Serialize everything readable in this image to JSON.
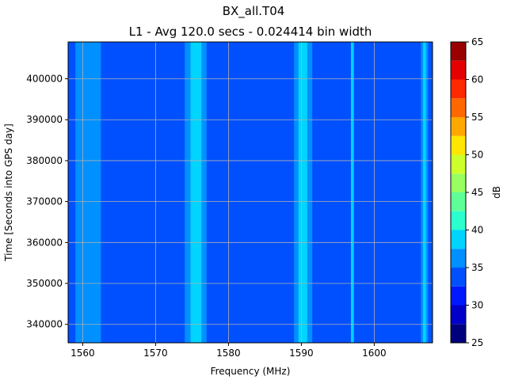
{
  "chart_data": {
    "type": "heatmap",
    "title": "BX_all.T04",
    "subtitle": "L1 - Avg 120.0 secs - 0.024414 bin width",
    "xlabel": "Frequency (MHz)",
    "ylabel": "Time [Seconds into GPS day]",
    "xlim": [
      1558,
      1608
    ],
    "ylim": [
      335500,
      409000
    ],
    "xticks": [
      1560,
      1570,
      1580,
      1590,
      1600
    ],
    "yticks": [
      340000,
      350000,
      360000,
      370000,
      380000,
      390000,
      400000
    ],
    "grid": true,
    "background_level_db": 34,
    "bands": [
      {
        "x0": 1559.0,
        "x1": 1562.5,
        "db": 36
      },
      {
        "x0": 1574.0,
        "x1": 1577.0,
        "db": 37
      },
      {
        "x0": 1574.8,
        "x1": 1576.3,
        "db": 39
      },
      {
        "x0": 1589.0,
        "x1": 1591.5,
        "db": 36
      },
      {
        "x0": 1589.6,
        "x1": 1590.8,
        "db": 38
      },
      {
        "x0": 1596.8,
        "x1": 1597.2,
        "db": 38
      },
      {
        "x0": 1606.4,
        "x1": 1607.4,
        "db": 36
      },
      {
        "x0": 1606.7,
        "x1": 1607.1,
        "db": 39
      }
    ],
    "colorbar": {
      "label": "dB",
      "min": 25,
      "max": 65,
      "step": 2.5,
      "ticks": [
        25,
        30,
        35,
        40,
        45,
        50,
        55,
        60,
        65
      ],
      "colors": [
        "#00007f",
        "#0000c8",
        "#0018ff",
        "#0050ff",
        "#0090ff",
        "#00d4ff",
        "#2affcd",
        "#5fff97",
        "#97ff5f",
        "#cdff2a",
        "#ffe600",
        "#ffa800",
        "#ff6800",
        "#ff2a00",
        "#e40000",
        "#9a0000"
      ]
    }
  }
}
